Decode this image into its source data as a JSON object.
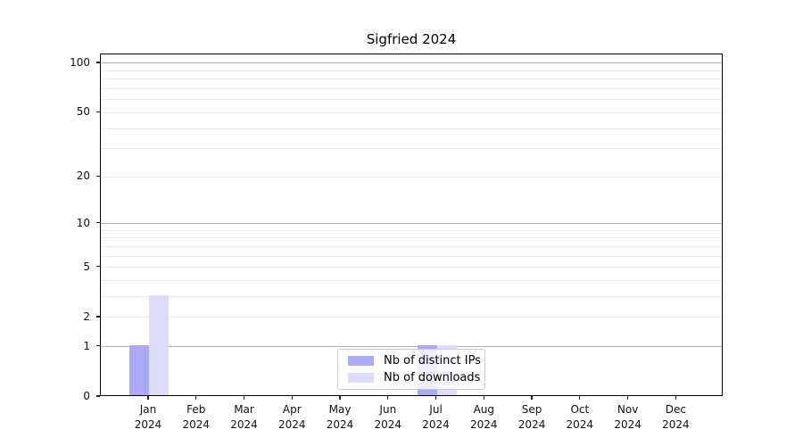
{
  "chart_data": {
    "type": "bar",
    "title": "Sigfried 2024",
    "categories": [
      "Jan",
      "Feb",
      "Mar",
      "Apr",
      "May",
      "Jun",
      "Jul",
      "Aug",
      "Sep",
      "Oct",
      "Nov",
      "Dec"
    ],
    "year_label": "2024",
    "series": [
      {
        "name": "Nb of distinct IPs",
        "color": "#aaaaf7",
        "values": [
          1,
          0,
          0,
          0,
          0,
          0,
          1,
          0,
          0,
          0,
          0,
          0
        ]
      },
      {
        "name": "Nb of downloads",
        "color": "#dcdcf8",
        "values": [
          3,
          0,
          0,
          0,
          0,
          0,
          1,
          0,
          0,
          0,
          0,
          0
        ]
      }
    ],
    "yaxis": {
      "scale": "log1p",
      "ticks": [
        0,
        1,
        2,
        5,
        10,
        20,
        50,
        100
      ],
      "minor_ticks": [
        3,
        4,
        6,
        7,
        8,
        9,
        30,
        40,
        60,
        70,
        80,
        90
      ],
      "major_grid_values": [
        1,
        10,
        100
      ],
      "ylim": [
        0,
        124
      ]
    },
    "xlabel": "",
    "ylabel": "",
    "legend": {
      "position": "lower center",
      "entries": [
        "Nb of distinct IPs",
        "Nb of downloads"
      ]
    },
    "grid": {
      "on": true,
      "major_color": "#b0b0b0",
      "minor_color": "#e8e8e8"
    }
  }
}
